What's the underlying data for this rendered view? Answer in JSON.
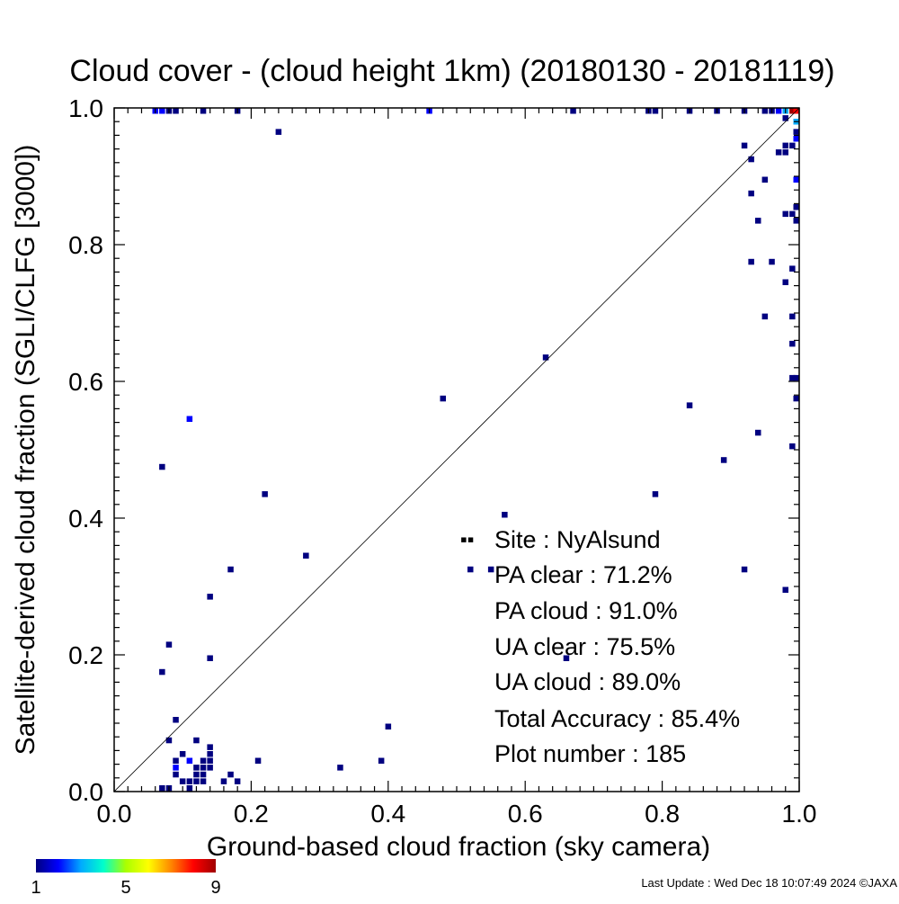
{
  "chart_data": {
    "type": "heatmap",
    "title": "Cloud cover - (cloud height 1km)  (20180130 - 20181119)",
    "xlabel": "Ground-based cloud fraction (sky camera)",
    "ylabel": "Satellite-derived cloud fraction (SGLI/CLFG [3000])",
    "xlim": [
      0.0,
      1.0
    ],
    "ylim": [
      0.0,
      1.0
    ],
    "x_ticks": [
      "0.0",
      "0.2",
      "0.4",
      "0.6",
      "0.8",
      "1.0"
    ],
    "y_ticks": [
      "0.0",
      "0.2",
      "0.4",
      "0.6",
      "0.8",
      "1.0"
    ],
    "grid": false,
    "diagonal_line": true,
    "bin_size": 0.01,
    "color_scale": {
      "min_label": "1",
      "mid_label": "5",
      "max_label": "9",
      "stops": [
        "#000080",
        "#0000ff",
        "#00aaff",
        "#00ffcc",
        "#aaff00",
        "#ffff00",
        "#ff8800",
        "#ff0000",
        "#a00000"
      ]
    },
    "points": [
      {
        "x": 0.06,
        "y": 1.0,
        "count": 2
      },
      {
        "x": 0.07,
        "y": 1.0,
        "count": 2
      },
      {
        "x": 0.08,
        "y": 1.0,
        "count": 1
      },
      {
        "x": 0.09,
        "y": 1.0,
        "count": 1
      },
      {
        "x": 0.13,
        "y": 1.0,
        "count": 1
      },
      {
        "x": 0.18,
        "y": 1.0,
        "count": 1
      },
      {
        "x": 0.24,
        "y": 0.965,
        "count": 1
      },
      {
        "x": 0.46,
        "y": 1.0,
        "count": 2
      },
      {
        "x": 0.67,
        "y": 1.0,
        "count": 1
      },
      {
        "x": 0.78,
        "y": 1.0,
        "count": 1
      },
      {
        "x": 0.79,
        "y": 1.0,
        "count": 1
      },
      {
        "x": 0.84,
        "y": 1.0,
        "count": 1
      },
      {
        "x": 0.88,
        "y": 1.0,
        "count": 1
      },
      {
        "x": 0.92,
        "y": 1.0,
        "count": 1
      },
      {
        "x": 0.95,
        "y": 1.0,
        "count": 1
      },
      {
        "x": 0.96,
        "y": 1.0,
        "count": 1
      },
      {
        "x": 0.97,
        "y": 1.0,
        "count": 2
      },
      {
        "x": 0.98,
        "y": 1.0,
        "count": 3
      },
      {
        "x": 0.99,
        "y": 1.0,
        "count": 9
      },
      {
        "x": 1.0,
        "y": 1.0,
        "count": 8
      },
      {
        "x": 0.98,
        "y": 0.985,
        "count": 1
      },
      {
        "x": 1.0,
        "y": 0.98,
        "count": 3
      },
      {
        "x": 1.0,
        "y": 0.965,
        "count": 1
      },
      {
        "x": 1.0,
        "y": 0.955,
        "count": 2
      },
      {
        "x": 0.92,
        "y": 0.945,
        "count": 1
      },
      {
        "x": 0.98,
        "y": 0.945,
        "count": 1
      },
      {
        "x": 0.99,
        "y": 0.945,
        "count": 1
      },
      {
        "x": 0.97,
        "y": 0.935,
        "count": 1
      },
      {
        "x": 0.98,
        "y": 0.935,
        "count": 1
      },
      {
        "x": 0.93,
        "y": 0.925,
        "count": 1
      },
      {
        "x": 0.95,
        "y": 0.895,
        "count": 1
      },
      {
        "x": 1.0,
        "y": 0.895,
        "count": 2
      },
      {
        "x": 0.93,
        "y": 0.875,
        "count": 1
      },
      {
        "x": 1.0,
        "y": 0.855,
        "count": 1
      },
      {
        "x": 0.98,
        "y": 0.845,
        "count": 1
      },
      {
        "x": 0.99,
        "y": 0.845,
        "count": 1
      },
      {
        "x": 0.94,
        "y": 0.835,
        "count": 1
      },
      {
        "x": 1.0,
        "y": 0.835,
        "count": 1
      },
      {
        "x": 0.93,
        "y": 0.775,
        "count": 1
      },
      {
        "x": 0.96,
        "y": 0.775,
        "count": 1
      },
      {
        "x": 0.99,
        "y": 0.765,
        "count": 1
      },
      {
        "x": 0.98,
        "y": 0.745,
        "count": 1
      },
      {
        "x": 0.95,
        "y": 0.695,
        "count": 1
      },
      {
        "x": 0.99,
        "y": 0.695,
        "count": 1
      },
      {
        "x": 0.99,
        "y": 0.655,
        "count": 1
      },
      {
        "x": 0.99,
        "y": 0.605,
        "count": 1
      },
      {
        "x": 1.0,
        "y": 0.605,
        "count": 1
      },
      {
        "x": 1.0,
        "y": 0.575,
        "count": 1
      },
      {
        "x": 0.84,
        "y": 0.565,
        "count": 1
      },
      {
        "x": 0.94,
        "y": 0.525,
        "count": 1
      },
      {
        "x": 0.99,
        "y": 0.505,
        "count": 1
      },
      {
        "x": 0.89,
        "y": 0.485,
        "count": 1
      },
      {
        "x": 0.79,
        "y": 0.435,
        "count": 1
      },
      {
        "x": 0.92,
        "y": 0.325,
        "count": 1
      },
      {
        "x": 0.98,
        "y": 0.295,
        "count": 1
      },
      {
        "x": 0.63,
        "y": 0.635,
        "count": 1
      },
      {
        "x": 0.48,
        "y": 0.575,
        "count": 1
      },
      {
        "x": 0.57,
        "y": 0.405,
        "count": 1
      },
      {
        "x": 0.52,
        "y": 0.325,
        "count": 1
      },
      {
        "x": 0.55,
        "y": 0.325,
        "count": 1
      },
      {
        "x": 0.66,
        "y": 0.195,
        "count": 1
      },
      {
        "x": 0.28,
        "y": 0.345,
        "count": 1
      },
      {
        "x": 0.22,
        "y": 0.435,
        "count": 1
      },
      {
        "x": 0.17,
        "y": 0.325,
        "count": 1
      },
      {
        "x": 0.14,
        "y": 0.285,
        "count": 1
      },
      {
        "x": 0.11,
        "y": 0.545,
        "count": 2
      },
      {
        "x": 0.07,
        "y": 0.475,
        "count": 1
      },
      {
        "x": 0.08,
        "y": 0.215,
        "count": 1
      },
      {
        "x": 0.07,
        "y": 0.175,
        "count": 1
      },
      {
        "x": 0.14,
        "y": 0.195,
        "count": 1
      },
      {
        "x": 0.4,
        "y": 0.095,
        "count": 1
      },
      {
        "x": 0.33,
        "y": 0.035,
        "count": 1
      },
      {
        "x": 0.39,
        "y": 0.045,
        "count": 1
      },
      {
        "x": 0.21,
        "y": 0.045,
        "count": 1
      },
      {
        "x": 0.09,
        "y": 0.105,
        "count": 1
      },
      {
        "x": 0.08,
        "y": 0.075,
        "count": 1
      },
      {
        "x": 0.12,
        "y": 0.075,
        "count": 1
      },
      {
        "x": 0.14,
        "y": 0.065,
        "count": 1
      },
      {
        "x": 0.1,
        "y": 0.055,
        "count": 1
      },
      {
        "x": 0.14,
        "y": 0.055,
        "count": 1
      },
      {
        "x": 0.09,
        "y": 0.045,
        "count": 1
      },
      {
        "x": 0.11,
        "y": 0.045,
        "count": 2
      },
      {
        "x": 0.13,
        "y": 0.045,
        "count": 1
      },
      {
        "x": 0.14,
        "y": 0.045,
        "count": 1
      },
      {
        "x": 0.09,
        "y": 0.035,
        "count": 2
      },
      {
        "x": 0.12,
        "y": 0.035,
        "count": 1
      },
      {
        "x": 0.13,
        "y": 0.035,
        "count": 1
      },
      {
        "x": 0.14,
        "y": 0.035,
        "count": 1
      },
      {
        "x": 0.17,
        "y": 0.025,
        "count": 1
      },
      {
        "x": 0.09,
        "y": 0.025,
        "count": 1
      },
      {
        "x": 0.12,
        "y": 0.025,
        "count": 1
      },
      {
        "x": 0.13,
        "y": 0.025,
        "count": 1
      },
      {
        "x": 0.1,
        "y": 0.015,
        "count": 1
      },
      {
        "x": 0.11,
        "y": 0.015,
        "count": 1
      },
      {
        "x": 0.12,
        "y": 0.015,
        "count": 1
      },
      {
        "x": 0.13,
        "y": 0.015,
        "count": 1
      },
      {
        "x": 0.16,
        "y": 0.015,
        "count": 1
      },
      {
        "x": 0.18,
        "y": 0.015,
        "count": 1
      },
      {
        "x": 0.07,
        "y": 0.005,
        "count": 1
      },
      {
        "x": 0.08,
        "y": 0.005,
        "count": 1
      },
      {
        "x": 0.11,
        "y": 0.005,
        "count": 1
      }
    ]
  },
  "legend": {
    "symbol": "▪▪",
    "lines": [
      "Site : NyAlsund",
      "PA clear :  71.2%",
      "PA cloud :  91.0%",
      "UA clear :  75.5%",
      "UA cloud :  89.0%",
      "Total Accuracy :  85.4%",
      "Plot number :       185"
    ]
  },
  "footer": {
    "update_text": "Last Update : Wed Dec 18 10:07:49 2024  ©JAXA"
  }
}
